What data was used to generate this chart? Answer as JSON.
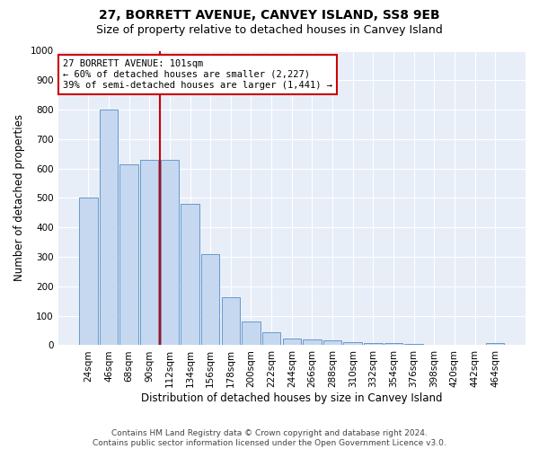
{
  "title1": "27, BORRETT AVENUE, CANVEY ISLAND, SS8 9EB",
  "title2": "Size of property relative to detached houses in Canvey Island",
  "xlabel": "Distribution of detached houses by size in Canvey Island",
  "ylabel": "Number of detached properties",
  "categories": [
    "24sqm",
    "46sqm",
    "68sqm",
    "90sqm",
    "112sqm",
    "134sqm",
    "156sqm",
    "178sqm",
    "200sqm",
    "222sqm",
    "244sqm",
    "266sqm",
    "288sqm",
    "310sqm",
    "332sqm",
    "354sqm",
    "376sqm",
    "398sqm",
    "420sqm",
    "442sqm",
    "464sqm"
  ],
  "values": [
    500,
    800,
    615,
    630,
    630,
    480,
    310,
    163,
    82,
    45,
    23,
    20,
    18,
    12,
    8,
    6,
    4,
    2,
    2,
    2,
    8
  ],
  "bar_color": "#c5d8f0",
  "bar_edge_color": "#6699cc",
  "background_color": "#e8eef8",
  "grid_color": "#ffffff",
  "vline_color": "#cc0000",
  "vline_position": 3.5,
  "annotation_text": "27 BORRETT AVENUE: 101sqm\n← 60% of detached houses are smaller (2,227)\n39% of semi-detached houses are larger (1,441) →",
  "annotation_box_color": "#ffffff",
  "annotation_box_edge": "#cc0000",
  "ylim": [
    0,
    1000
  ],
  "yticks": [
    0,
    100,
    200,
    300,
    400,
    500,
    600,
    700,
    800,
    900,
    1000
  ],
  "footer": "Contains HM Land Registry data © Crown copyright and database right 2024.\nContains public sector information licensed under the Open Government Licence v3.0.",
  "title1_fontsize": 10,
  "title2_fontsize": 9,
  "xlabel_fontsize": 8.5,
  "ylabel_fontsize": 8.5,
  "tick_fontsize": 7.5,
  "annotation_fontsize": 7.5,
  "footer_fontsize": 6.5
}
